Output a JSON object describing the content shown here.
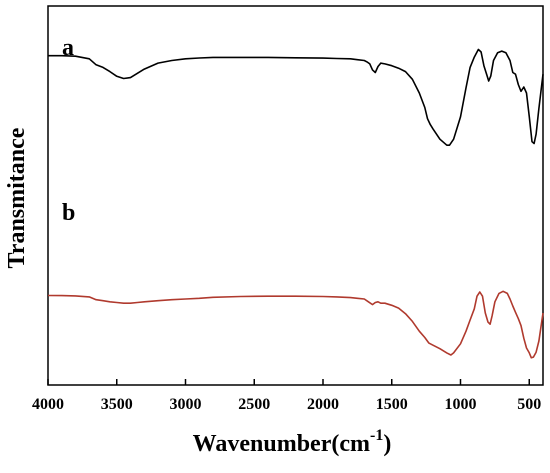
{
  "chart_data": {
    "type": "line",
    "xlabel": "Wavenumber(cm-1)",
    "xlabel_main": "Wavenumber(cm",
    "xlabel_sup": "-1",
    "xlabel_close": ")",
    "ylabel": "Transmitance",
    "xlim": [
      4000,
      400
    ],
    "ylim": [
      0,
      100
    ],
    "x_ticks": [
      4000,
      3500,
      3000,
      2500,
      2000,
      1500,
      1000,
      500
    ],
    "x_tick_labels": [
      "4000",
      "3500",
      "3000",
      "2500",
      "2000",
      "1500",
      "1000",
      "500"
    ],
    "y_ticks_shown": false,
    "grid": false,
    "series": [
      {
        "name": "a",
        "color": "#000000",
        "points": [
          [
            4000,
            90.8
          ],
          [
            3900,
            90.8
          ],
          [
            3800,
            90.5
          ],
          [
            3700,
            89
          ],
          [
            3650,
            85.5
          ],
          [
            3600,
            84
          ],
          [
            3550,
            81.5
          ],
          [
            3500,
            78.8
          ],
          [
            3450,
            77.5
          ],
          [
            3400,
            78
          ],
          [
            3350,
            80.5
          ],
          [
            3300,
            83
          ],
          [
            3200,
            86.5
          ],
          [
            3100,
            88
          ],
          [
            3000,
            89
          ],
          [
            2900,
            89.5
          ],
          [
            2800,
            89.8
          ],
          [
            2600,
            89.8
          ],
          [
            2400,
            89.8
          ],
          [
            2200,
            89.6
          ],
          [
            2000,
            89.4
          ],
          [
            1900,
            89.2
          ],
          [
            1800,
            89
          ],
          [
            1750,
            88.5
          ],
          [
            1700,
            88
          ],
          [
            1680,
            87.2
          ],
          [
            1660,
            86
          ],
          [
            1640,
            82.5
          ],
          [
            1620,
            81
          ],
          [
            1600,
            84.5
          ],
          [
            1580,
            86.5
          ],
          [
            1550,
            86
          ],
          [
            1500,
            85
          ],
          [
            1450,
            83.5
          ],
          [
            1400,
            81.5
          ],
          [
            1350,
            77
          ],
          [
            1300,
            69
          ],
          [
            1260,
            60.5
          ],
          [
            1240,
            54
          ],
          [
            1220,
            50.5
          ],
          [
            1200,
            48
          ],
          [
            1150,
            42
          ],
          [
            1100,
            38.5
          ],
          [
            1080,
            38.5
          ],
          [
            1050,
            42
          ],
          [
            1000,
            55
          ],
          [
            960,
            72
          ],
          [
            930,
            84
          ],
          [
            900,
            90
          ],
          [
            870,
            94.5
          ],
          [
            850,
            93
          ],
          [
            830,
            85
          ],
          [
            810,
            80
          ],
          [
            795,
            76
          ],
          [
            780,
            79
          ],
          [
            760,
            88
          ],
          [
            730,
            92.5
          ],
          [
            700,
            93.5
          ],
          [
            670,
            92.5
          ],
          [
            640,
            88
          ],
          [
            620,
            81
          ],
          [
            600,
            80
          ],
          [
            580,
            74
          ],
          [
            560,
            70
          ],
          [
            540,
            72.5
          ],
          [
            520,
            69
          ],
          [
            500,
            55
          ],
          [
            480,
            40.5
          ],
          [
            465,
            39.5
          ],
          [
            450,
            45
          ],
          [
            430,
            60
          ],
          [
            400,
            80
          ]
        ]
      },
      {
        "name": "b",
        "color": "#b03a2e",
        "points": [
          [
            4000,
            42.5
          ],
          [
            3900,
            42.4
          ],
          [
            3800,
            42.2
          ],
          [
            3700,
            41.5
          ],
          [
            3650,
            39.5
          ],
          [
            3600,
            38.8
          ],
          [
            3550,
            38
          ],
          [
            3500,
            37.5
          ],
          [
            3450,
            37
          ],
          [
            3400,
            37
          ],
          [
            3350,
            37.5
          ],
          [
            3300,
            38
          ],
          [
            3200,
            38.8
          ],
          [
            3100,
            39.5
          ],
          [
            3000,
            40
          ],
          [
            2900,
            40.5
          ],
          [
            2800,
            41.2
          ],
          [
            2600,
            41.8
          ],
          [
            2400,
            42
          ],
          [
            2200,
            42
          ],
          [
            2000,
            41.8
          ],
          [
            1900,
            41.5
          ],
          [
            1800,
            41
          ],
          [
            1750,
            40.5
          ],
          [
            1700,
            40
          ],
          [
            1670,
            38
          ],
          [
            1640,
            36
          ],
          [
            1620,
            37.5
          ],
          [
            1600,
            38
          ],
          [
            1580,
            37
          ],
          [
            1550,
            37
          ],
          [
            1500,
            35.5
          ],
          [
            1450,
            33.5
          ],
          [
            1400,
            29.5
          ],
          [
            1350,
            24
          ],
          [
            1300,
            17
          ],
          [
            1260,
            12.5
          ],
          [
            1230,
            8.5
          ],
          [
            1200,
            7
          ],
          [
            1150,
            4.5
          ],
          [
            1100,
            1.5
          ],
          [
            1070,
            0
          ],
          [
            1050,
            1.5
          ],
          [
            1000,
            8
          ],
          [
            960,
            17
          ],
          [
            930,
            25
          ],
          [
            900,
            33
          ],
          [
            880,
            42
          ],
          [
            860,
            45
          ],
          [
            840,
            42
          ],
          [
            820,
            30
          ],
          [
            800,
            23.5
          ],
          [
            785,
            22
          ],
          [
            770,
            28
          ],
          [
            750,
            38
          ],
          [
            720,
            44
          ],
          [
            690,
            45.5
          ],
          [
            660,
            44
          ],
          [
            640,
            40
          ],
          [
            620,
            35
          ],
          [
            600,
            30.5
          ],
          [
            580,
            26
          ],
          [
            560,
            21
          ],
          [
            540,
            12
          ],
          [
            520,
            5
          ],
          [
            500,
            1.5
          ],
          [
            485,
            -2
          ],
          [
            470,
            -1.5
          ],
          [
            450,
            2
          ],
          [
            430,
            10
          ],
          [
            400,
            30
          ]
        ]
      }
    ],
    "curve_labels": [
      "a",
      "b"
    ]
  }
}
